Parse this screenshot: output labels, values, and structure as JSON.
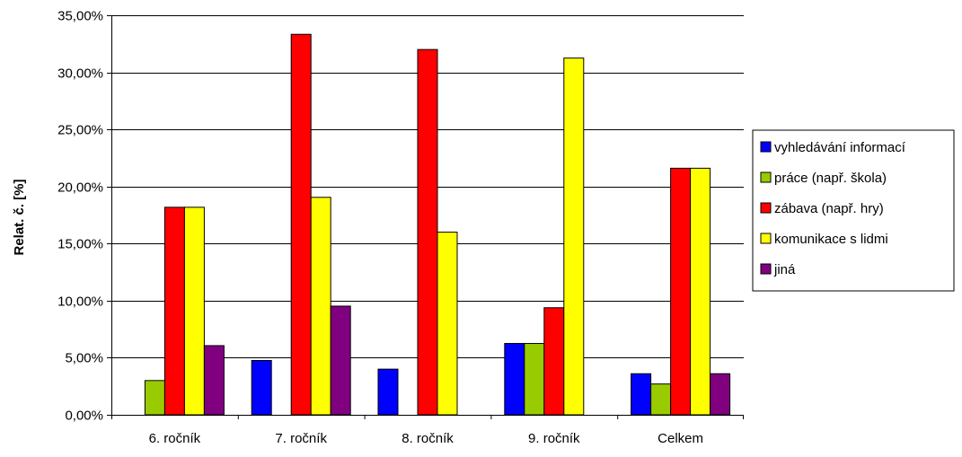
{
  "chart_data": {
    "type": "bar",
    "title": "",
    "xlabel": "",
    "ylabel": "Relat. č. [%]",
    "ylim": [
      0,
      35
    ],
    "y_ticks": [
      "0,00%",
      "5,00%",
      "10,00%",
      "15,00%",
      "20,00%",
      "25,00%",
      "30,00%",
      "35,00%"
    ],
    "categories": [
      "6. ročník",
      "7. ročník",
      "8. ročník",
      "9. ročník",
      "Celkem"
    ],
    "grid": true,
    "legend_position": "right",
    "series": [
      {
        "name": "vyhledávání informací",
        "color": "#0000FF",
        "values": [
          0,
          4.76,
          4.0,
          6.25,
          3.6
        ]
      },
      {
        "name": "práce (např. škola)",
        "color": "#99CC00",
        "values": [
          3.0,
          0,
          0,
          6.25,
          2.7
        ]
      },
      {
        "name": "zábava (např. hry)",
        "color": "#FF0000",
        "values": [
          18.18,
          33.33,
          32.0,
          9.38,
          21.6
        ]
      },
      {
        "name": "komunikace s lidmi",
        "color": "#FFFF00",
        "values": [
          18.18,
          19.05,
          16.0,
          31.25,
          21.6
        ]
      },
      {
        "name": "jiná",
        "color": "#800080",
        "values": [
          6.06,
          9.52,
          0,
          0,
          3.6
        ]
      }
    ]
  }
}
